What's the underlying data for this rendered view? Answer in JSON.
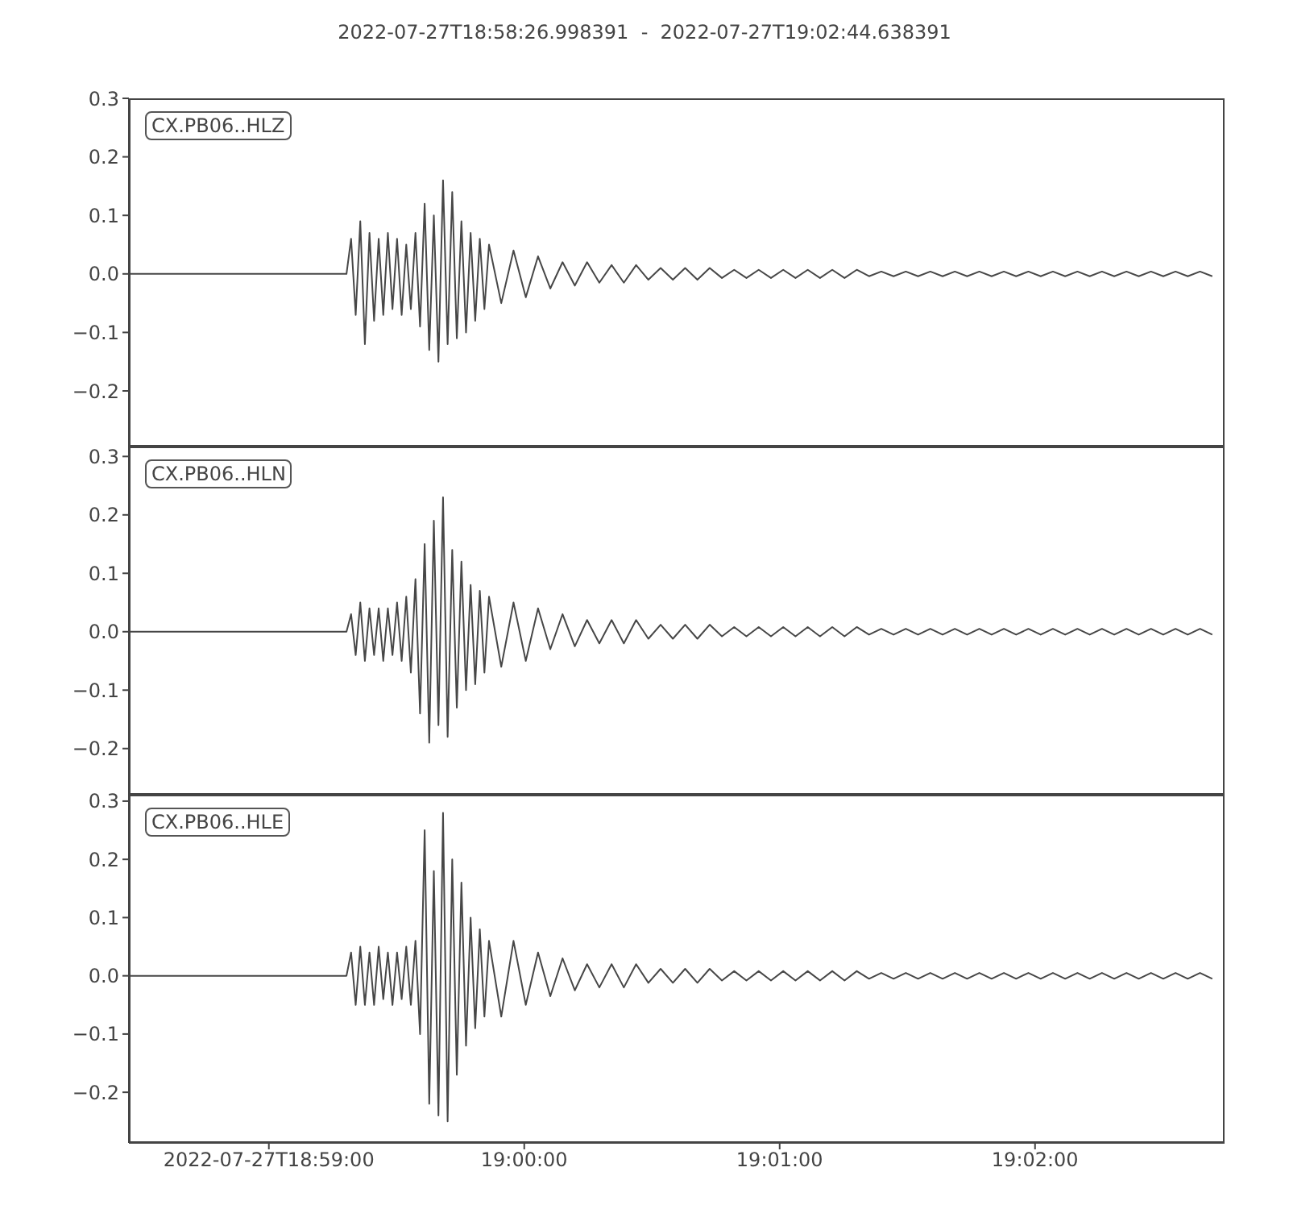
{
  "chart_data": [
    {
      "type": "line",
      "title": "2022-07-27T18:58:26.998391  -  2022-07-27T19:02:44.638391",
      "annotations": [
        "CX.PB06..HLZ"
      ],
      "tick_labels": "y",
      "x": [
        18.9742,
        18.9884,
        18.9887,
        18.989,
        18.9893,
        18.9896,
        18.9899,
        18.9902,
        18.9905,
        18.9908,
        18.9911,
        18.9914,
        18.9917,
        18.992,
        18.9923,
        18.9926,
        18.9929,
        18.9932,
        18.9935,
        18.9938,
        18.9941,
        18.9944,
        18.9947,
        18.995,
        18.9953,
        18.9956,
        18.9959,
        18.9962,
        18.9965,
        18.9968,
        18.9971,
        18.9974,
        18.9977,
        18.9985,
        18.9993,
        19.0001,
        19.0009,
        19.0017,
        19.0025,
        19.0033,
        19.0041,
        19.0049,
        19.0057,
        19.0065,
        19.0073,
        19.0081,
        19.0089,
        19.0097,
        19.0105,
        19.0113,
        19.0121,
        19.0129,
        19.0137,
        19.0145,
        19.0153,
        19.0161,
        19.0169,
        19.0177,
        19.0185,
        19.0193,
        19.0201,
        19.0209,
        19.0217,
        19.0225,
        19.0233,
        19.0241,
        19.0249,
        19.0257,
        19.0265,
        19.0273,
        19.0281,
        19.0289,
        19.0297,
        19.0305,
        19.0313,
        19.0321,
        19.0329,
        19.0337,
        19.0345,
        19.0353,
        19.0361,
        19.0369,
        19.0377,
        19.0385,
        19.0393,
        19.0401,
        19.0409,
        19.0417,
        19.0425,
        19.0433,
        19.0441,
        19.0449
      ],
      "series": [
        {
          "color": "#474747",
          "values": [
            0,
            0,
            0.06,
            -0.07,
            0.09,
            -0.12,
            0.07,
            -0.08,
            0.06,
            -0.07,
            0.07,
            -0.06,
            0.06,
            -0.07,
            0.05,
            -0.06,
            0.07,
            -0.09,
            0.12,
            -0.13,
            0.1,
            -0.15,
            0.16,
            -0.12,
            0.14,
            -0.11,
            0.09,
            -0.1,
            0.07,
            -0.08,
            0.06,
            -0.06,
            0.05,
            -0.05,
            0.04,
            -0.04,
            0.03,
            -0.025,
            0.02,
            -0.02,
            0.02,
            -0.015,
            0.015,
            -0.015,
            0.015,
            -0.01,
            0.01,
            -0.01,
            0.01,
            -0.01,
            0.01,
            -0.007,
            0.007,
            -0.007,
            0.007,
            -0.007,
            0.007,
            -0.007,
            0.007,
            -0.007,
            0.007,
            -0.007,
            0.007,
            -0.004,
            0.004,
            -0.004,
            0.004,
            -0.004,
            0.004,
            -0.004,
            0.004,
            -0.004,
            0.004,
            -0.004,
            0.004,
            -0.004,
            0.004,
            -0.004,
            0.004,
            -0.004,
            0.004,
            -0.004,
            0.004,
            -0.004,
            0.004,
            -0.004,
            0.004,
            -0.004,
            0.004,
            -0.004,
            0.004,
            -0.004
          ]
        }
      ],
      "xlim": [
        18.9742,
        19.0457
      ],
      "ylim": [
        -0.295,
        0.3
      ],
      "yticks": [
        {
          "value": -0.2,
          "label": "−0.2"
        },
        {
          "value": -0.1,
          "label": "−0.1"
        },
        {
          "value": 0,
          "label": "0.0"
        },
        0.1,
        0.2,
        0.3
      ]
    },
    {
      "type": "line",
      "annotations": [
        "CX.PB06..HLN"
      ],
      "tick_labels": "y",
      "x": [
        18.9742,
        18.9884,
        18.9887,
        18.989,
        18.9893,
        18.9896,
        18.9899,
        18.9902,
        18.9905,
        18.9908,
        18.9911,
        18.9914,
        18.9917,
        18.992,
        18.9923,
        18.9926,
        18.9929,
        18.9932,
        18.9935,
        18.9938,
        18.9941,
        18.9944,
        18.9947,
        18.995,
        18.9953,
        18.9956,
        18.9959,
        18.9962,
        18.9965,
        18.9968,
        18.9971,
        18.9974,
        18.9977,
        18.9985,
        18.9993,
        19.0001,
        19.0009,
        19.0017,
        19.0025,
        19.0033,
        19.0041,
        19.0049,
        19.0057,
        19.0065,
        19.0073,
        19.0081,
        19.0089,
        19.0097,
        19.0105,
        19.0113,
        19.0121,
        19.0129,
        19.0137,
        19.0145,
        19.0153,
        19.0161,
        19.0169,
        19.0177,
        19.0185,
        19.0193,
        19.0201,
        19.0209,
        19.0217,
        19.0225,
        19.0233,
        19.0241,
        19.0249,
        19.0257,
        19.0265,
        19.0273,
        19.0281,
        19.0289,
        19.0297,
        19.0305,
        19.0313,
        19.0321,
        19.0329,
        19.0337,
        19.0345,
        19.0353,
        19.0361,
        19.0369,
        19.0377,
        19.0385,
        19.0393,
        19.0401,
        19.0409,
        19.0417,
        19.0425,
        19.0433,
        19.0441,
        19.0449
      ],
      "series": [
        {
          "color": "#474747",
          "values": [
            0,
            0,
            0.03,
            -0.04,
            0.05,
            -0.05,
            0.04,
            -0.04,
            0.04,
            -0.05,
            0.04,
            -0.04,
            0.05,
            -0.05,
            0.06,
            -0.07,
            0.09,
            -0.14,
            0.15,
            -0.19,
            0.19,
            -0.16,
            0.23,
            -0.18,
            0.14,
            -0.13,
            0.12,
            -0.1,
            0.08,
            -0.09,
            0.07,
            -0.07,
            0.06,
            -0.06,
            0.05,
            -0.05,
            0.04,
            -0.03,
            0.03,
            -0.025,
            0.02,
            -0.02,
            0.02,
            -0.02,
            0.02,
            -0.012,
            0.012,
            -0.012,
            0.012,
            -0.012,
            0.012,
            -0.008,
            0.008,
            -0.008,
            0.008,
            -0.008,
            0.008,
            -0.008,
            0.008,
            -0.008,
            0.008,
            -0.008,
            0.008,
            -0.005,
            0.005,
            -0.005,
            0.005,
            -0.005,
            0.005,
            -0.005,
            0.005,
            -0.005,
            0.005,
            -0.005,
            0.005,
            -0.005,
            0.005,
            -0.005,
            0.005,
            -0.005,
            0.005,
            -0.005,
            0.005,
            -0.005,
            0.005,
            -0.005,
            0.005,
            -0.005,
            0.005,
            -0.005,
            0.005,
            -0.005
          ]
        }
      ],
      "xlim": [
        18.9742,
        19.0457
      ],
      "ylim": [
        -0.279,
        0.317
      ],
      "yticks": [
        {
          "value": -0.2,
          "label": "−0.2"
        },
        {
          "value": -0.1,
          "label": "−0.1"
        },
        {
          "value": 0,
          "label": "0.0"
        },
        0.1,
        0.2,
        0.3
      ]
    },
    {
      "type": "line",
      "annotations": [
        "CX.PB06..HLE"
      ],
      "x": [
        18.9742,
        18.9884,
        18.9887,
        18.989,
        18.9893,
        18.9896,
        18.9899,
        18.9902,
        18.9905,
        18.9908,
        18.9911,
        18.9914,
        18.9917,
        18.992,
        18.9923,
        18.9926,
        18.9929,
        18.9932,
        18.9935,
        18.9938,
        18.9941,
        18.9944,
        18.9947,
        18.995,
        18.9953,
        18.9956,
        18.9959,
        18.9962,
        18.9965,
        18.9968,
        18.9971,
        18.9974,
        18.9977,
        18.9985,
        18.9993,
        19.0001,
        19.0009,
        19.0017,
        19.0025,
        19.0033,
        19.0041,
        19.0049,
        19.0057,
        19.0065,
        19.0073,
        19.0081,
        19.0089,
        19.0097,
        19.0105,
        19.0113,
        19.0121,
        19.0129,
        19.0137,
        19.0145,
        19.0153,
        19.0161,
        19.0169,
        19.0177,
        19.0185,
        19.0193,
        19.0201,
        19.0209,
        19.0217,
        19.0225,
        19.0233,
        19.0241,
        19.0249,
        19.0257,
        19.0265,
        19.0273,
        19.0281,
        19.0289,
        19.0297,
        19.0305,
        19.0313,
        19.0321,
        19.0329,
        19.0337,
        19.0345,
        19.0353,
        19.0361,
        19.0369,
        19.0377,
        19.0385,
        19.0393,
        19.0401,
        19.0409,
        19.0417,
        19.0425,
        19.0433,
        19.0441,
        19.0449
      ],
      "series": [
        {
          "color": "#474747",
          "values": [
            0,
            0,
            0.04,
            -0.05,
            0.05,
            -0.05,
            0.04,
            -0.05,
            0.05,
            -0.04,
            0.04,
            -0.05,
            0.04,
            -0.04,
            0.05,
            -0.05,
            0.06,
            -0.1,
            0.25,
            -0.22,
            0.18,
            -0.24,
            0.28,
            -0.25,
            0.2,
            -0.17,
            0.16,
            -0.12,
            0.1,
            -0.09,
            0.08,
            -0.07,
            0.06,
            -0.07,
            0.06,
            -0.05,
            0.04,
            -0.035,
            0.03,
            -0.025,
            0.02,
            -0.02,
            0.02,
            -0.02,
            0.02,
            -0.012,
            0.012,
            -0.012,
            0.012,
            -0.012,
            0.012,
            -0.008,
            0.008,
            -0.008,
            0.008,
            -0.008,
            0.008,
            -0.008,
            0.008,
            -0.008,
            0.008,
            -0.008,
            0.008,
            -0.005,
            0.005,
            -0.005,
            0.005,
            -0.005,
            0.005,
            -0.005,
            0.005,
            -0.005,
            0.005,
            -0.005,
            0.005,
            -0.005,
            0.005,
            -0.005,
            0.005,
            -0.005,
            0.005,
            -0.005,
            0.005,
            -0.005,
            0.005,
            -0.005,
            0.005,
            -0.005,
            0.005,
            -0.005,
            0.005,
            -0.005
          ]
        }
      ],
      "xlim": [
        18.9742,
        19.0457
      ],
      "xticks": [
        {
          "value": 18.983333,
          "label": "2022-07-27T18:59:00"
        },
        {
          "value": 19.0,
          "label": "19:00:00"
        },
        {
          "value": 19.016667,
          "label": "19:01:00"
        },
        {
          "value": 19.033333,
          "label": "19:02:00"
        }
      ],
      "ylim": [
        -0.287,
        0.311
      ],
      "yticks": [
        {
          "value": -0.2,
          "label": "−0.2"
        },
        {
          "value": -0.1,
          "label": "−0.1"
        },
        {
          "value": 0,
          "label": "0.0"
        },
        0.1,
        0.2,
        0.3
      ]
    }
  ]
}
